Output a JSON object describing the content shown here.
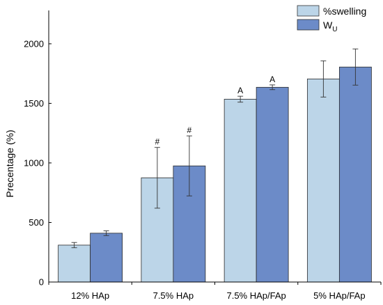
{
  "chart_data": {
    "type": "bar",
    "title": "",
    "xlabel": "",
    "ylabel": "Precentage (%)",
    "ylim": [
      0,
      2280
    ],
    "yticks": [
      0,
      500,
      1000,
      1500,
      2000
    ],
    "categories": [
      "12% HAp",
      "7.5% HAp",
      "7.5% HAp/FAp",
      "5% HAp/FAp"
    ],
    "series": [
      {
        "name": "%swelling",
        "color": "#bcd5e8",
        "values": [
          310,
          875,
          1535,
          1705
        ],
        "errors": [
          22,
          255,
          25,
          152
        ],
        "annotations": [
          "",
          "#",
          "A",
          ""
        ]
      },
      {
        "name": "W",
        "name_subscript": "U",
        "color": "#6c8bc8",
        "values": [
          410,
          975,
          1635,
          1805
        ],
        "errors": [
          20,
          252,
          20,
          152
        ],
        "annotations": [
          "",
          "#",
          "A",
          ""
        ]
      }
    ],
    "grid": false,
    "legend_position": "top-right"
  }
}
